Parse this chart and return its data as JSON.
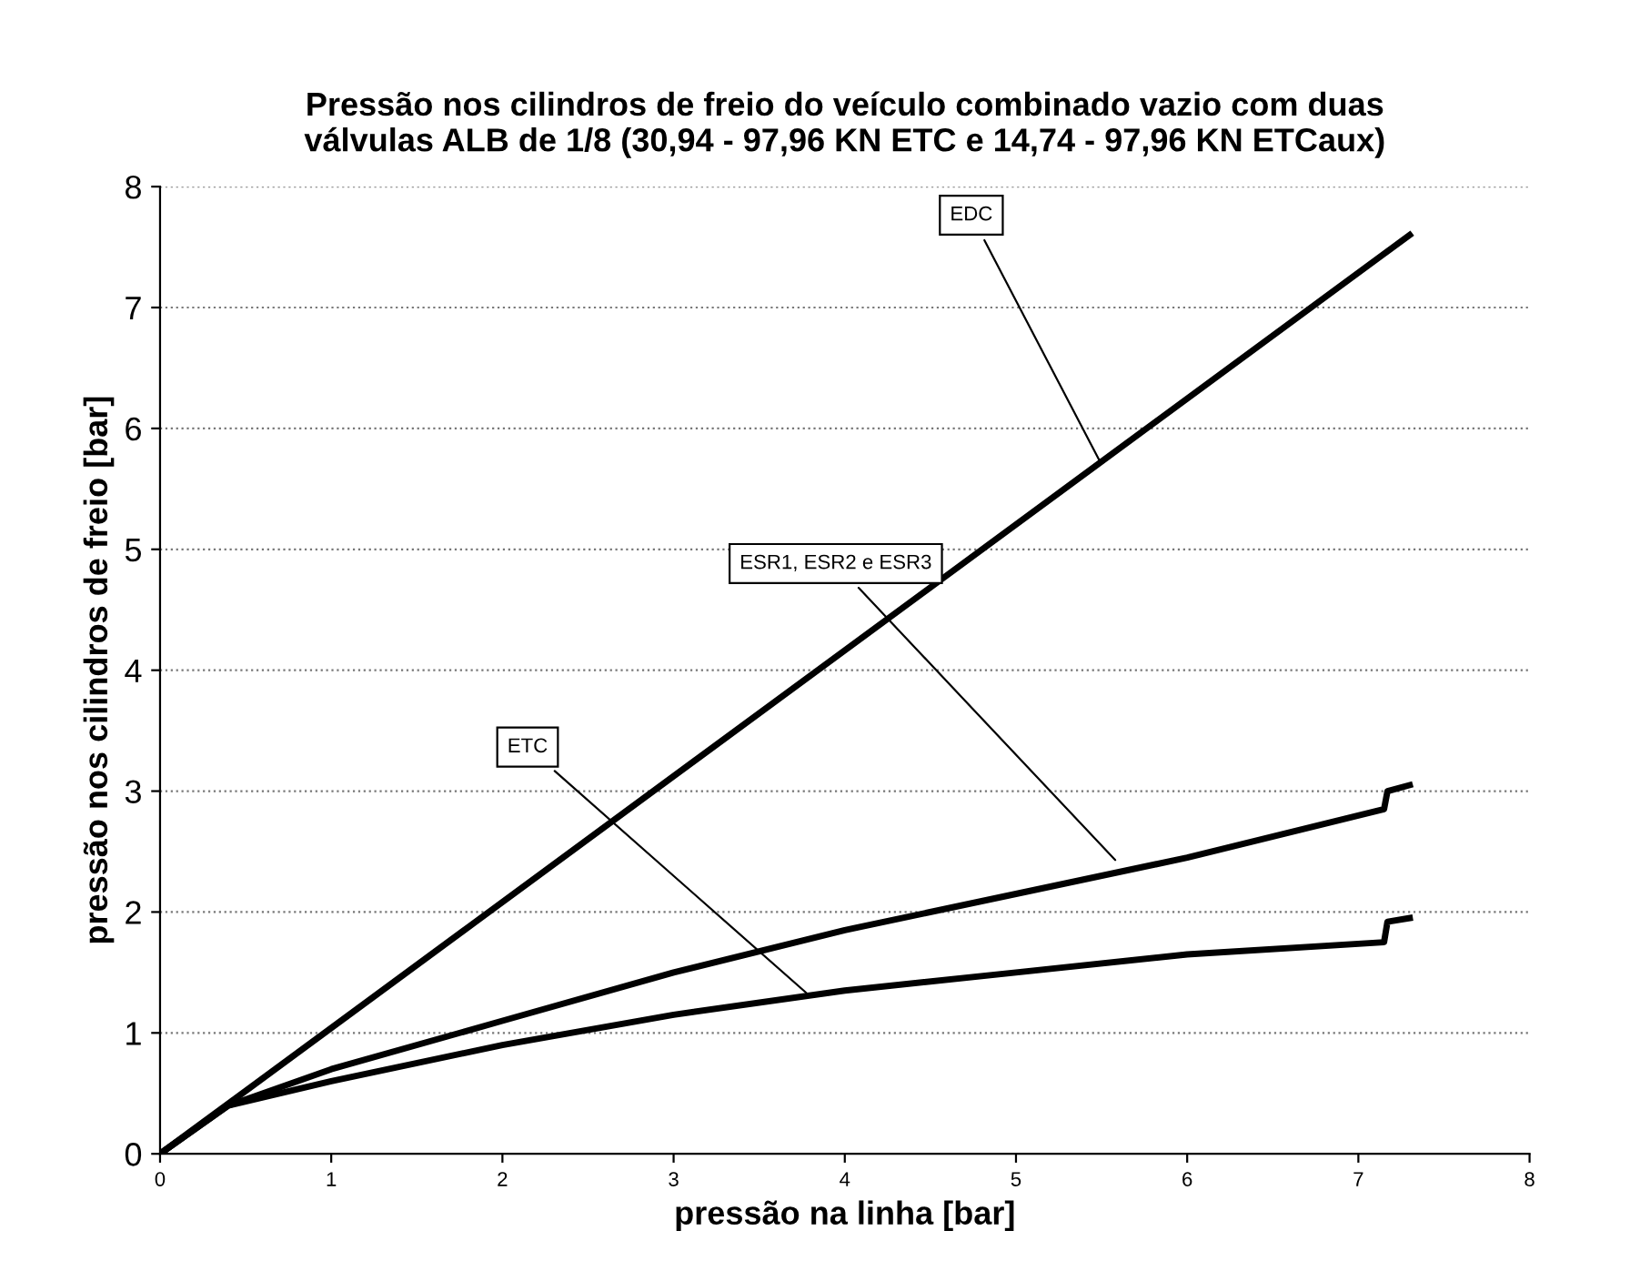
{
  "chart_data": {
    "type": "line",
    "title": "Pressão nos cilindros de freio do veículo combinado vazio com duas\nválvulas ALB de 1/8 (30,94 - 97,96 KN ETC e 14,74 - 97,96 KN ETCaux)",
    "xlabel": "pressão na linha [bar]",
    "ylabel": "pressão nos cilindros de freio [bar]",
    "xlim": [
      0,
      8
    ],
    "xticks": [
      0,
      1,
      2,
      3,
      4,
      5,
      6,
      7,
      8
    ],
    "ylim": [
      0,
      8
    ],
    "yticks": [
      0,
      1,
      2,
      3,
      4,
      5,
      6,
      7,
      8
    ],
    "grid": "y",
    "legend": false,
    "marker": "none",
    "line_style": "solid",
    "series": [
      {
        "color": "#000000",
        "x": [
          0,
          7.3
        ],
        "values": [
          0,
          7.6
        ]
      },
      {
        "color": "#000000",
        "x": [
          0,
          0.4,
          1,
          2,
          3,
          4,
          5,
          6,
          7.15,
          7.17,
          7.3
        ],
        "values": [
          0,
          0.4,
          0.7,
          1.1,
          1.5,
          1.85,
          2.15,
          2.45,
          2.85,
          3.0,
          3.05
        ]
      },
      {
        "color": "#000000",
        "x": [
          0,
          0.4,
          1,
          2,
          3,
          4,
          5,
          6,
          7.15,
          7.17,
          7.3
        ],
        "values": [
          0,
          0.4,
          0.6,
          0.9,
          1.15,
          1.35,
          1.5,
          1.65,
          1.75,
          1.92,
          1.95
        ]
      }
    ],
    "annotations": [
      {
        "text": "EDC",
        "x": 5.5,
        "y": 5.7
      },
      {
        "text": "ESR1, ESR2 e ESR3",
        "x": 5.6,
        "y": 2.4
      },
      {
        "text": "ETC",
        "x": 3.8,
        "y": 1.3
      }
    ]
  }
}
